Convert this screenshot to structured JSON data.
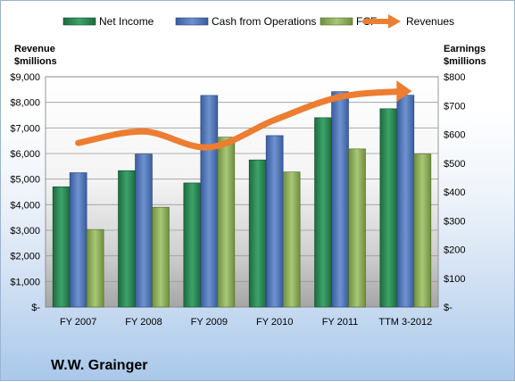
{
  "chart_data": {
    "type": "bar",
    "company_label": "W.W. Grainger",
    "categories": [
      "FY 2007",
      "FY 2008",
      "FY 2009",
      "FY 2010",
      "FY 2011",
      "TTM 3-2012"
    ],
    "left_axis": {
      "title_line1": "Revenue",
      "title_line2": "$millions",
      "range": [
        0,
        9000
      ],
      "ticks": [
        "$-",
        "$1,000",
        "$2,000",
        "$3,000",
        "$4,000",
        "$5,000",
        "$6,000",
        "$7,000",
        "$8,000",
        "$9,000"
      ]
    },
    "right_axis": {
      "title_line1": "Earnings",
      "title_line2": "$millions",
      "range": [
        0,
        800
      ],
      "ticks": [
        "$-",
        "$100",
        "$200",
        "$300",
        "$400",
        "$500",
        "$600",
        "$700",
        "$800"
      ]
    },
    "series": [
      {
        "name": "Net Income",
        "type": "bar",
        "axis": "left",
        "color": "#2e8b57",
        "values": [
          4700,
          5330,
          4850,
          5750,
          7400,
          7750
        ]
      },
      {
        "name": "Cash from Operations",
        "type": "bar",
        "axis": "left",
        "color": "#4a6fb5",
        "values": [
          5250,
          5980,
          8270,
          6700,
          8420,
          8280
        ]
      },
      {
        "name": "FCF",
        "type": "bar",
        "axis": "left",
        "color": "#8dae5a",
        "values": [
          3030,
          3900,
          6640,
          5280,
          6180,
          5980
        ]
      },
      {
        "name": "Revenues",
        "type": "line",
        "axis": "right",
        "color": "#ed7d31",
        "values": [
          570,
          610,
          555,
          650,
          730,
          750
        ]
      }
    ],
    "grid": true,
    "legend_position": "top"
  }
}
